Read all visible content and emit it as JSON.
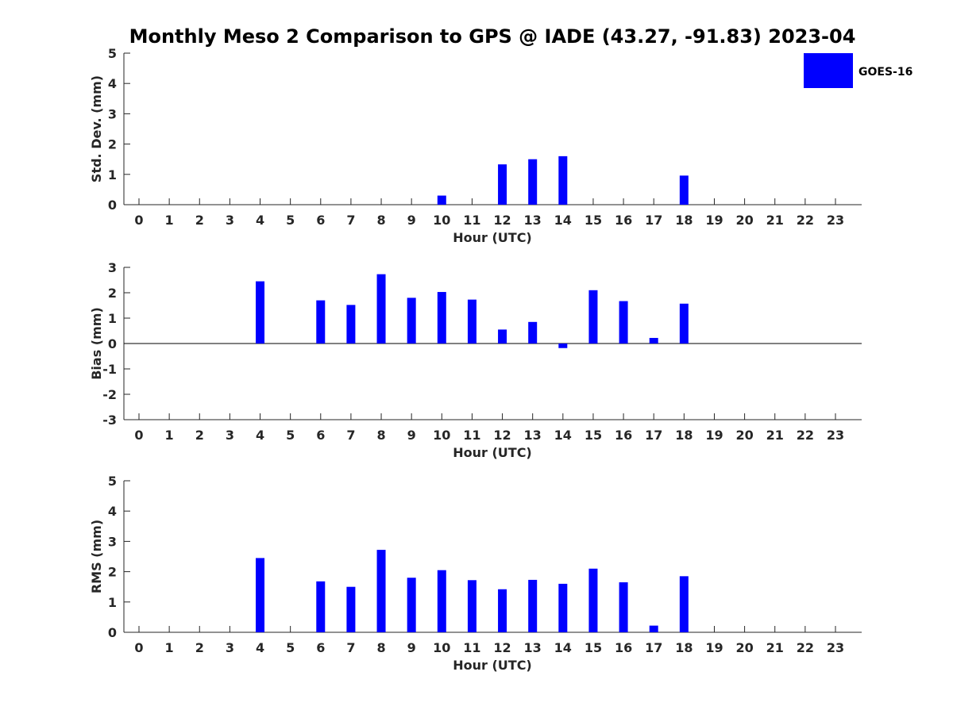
{
  "title": "Monthly Meso 2 Comparison to GPS @ IADE (43.27, -91.83) 2023-04",
  "legend": {
    "label": "GOES-16",
    "color": "#0000ff"
  },
  "colors": {
    "bar": "#0000ff",
    "axis": "#262626"
  },
  "chart_data": [
    {
      "type": "bar",
      "ylabel": "Std. Dev. (mm)",
      "xlabel": "Hour (UTC)",
      "ylim": [
        0,
        5
      ],
      "yticks": [
        "0",
        "1",
        "2",
        "3",
        "4",
        "5"
      ],
      "categories": [
        "0",
        "1",
        "2",
        "3",
        "4",
        "5",
        "6",
        "7",
        "8",
        "9",
        "10",
        "11",
        "12",
        "13",
        "14",
        "15",
        "16",
        "17",
        "18",
        "19",
        "20",
        "21",
        "22",
        "23"
      ],
      "series": [
        {
          "name": "GOES-16",
          "values": [
            null,
            null,
            null,
            null,
            null,
            null,
            null,
            null,
            null,
            null,
            0.3,
            null,
            1.33,
            1.5,
            1.6,
            null,
            null,
            null,
            0.96,
            null,
            null,
            null,
            null,
            null
          ]
        }
      ]
    },
    {
      "type": "bar",
      "ylabel": "Bias (mm)",
      "xlabel": "Hour (UTC)",
      "ylim": [
        -3,
        3
      ],
      "yticks": [
        "-3",
        "-2",
        "-1",
        "0",
        "1",
        "2",
        "3"
      ],
      "categories": [
        "0",
        "1",
        "2",
        "3",
        "4",
        "5",
        "6",
        "7",
        "8",
        "9",
        "10",
        "11",
        "12",
        "13",
        "14",
        "15",
        "16",
        "17",
        "18",
        "19",
        "20",
        "21",
        "22",
        "23"
      ],
      "series": [
        {
          "name": "GOES-16",
          "values": [
            null,
            null,
            null,
            null,
            2.45,
            null,
            1.7,
            1.52,
            2.73,
            1.8,
            2.03,
            1.73,
            0.55,
            0.85,
            -0.18,
            2.1,
            1.67,
            0.22,
            1.57,
            null,
            null,
            null,
            null,
            null
          ]
        }
      ]
    },
    {
      "type": "bar",
      "ylabel": "RMS (mm)",
      "xlabel": "Hour (UTC)",
      "ylim": [
        0,
        5
      ],
      "yticks": [
        "0",
        "1",
        "2",
        "3",
        "4",
        "5"
      ],
      "categories": [
        "0",
        "1",
        "2",
        "3",
        "4",
        "5",
        "6",
        "7",
        "8",
        "9",
        "10",
        "11",
        "12",
        "13",
        "14",
        "15",
        "16",
        "17",
        "18",
        "19",
        "20",
        "21",
        "22",
        "23"
      ],
      "series": [
        {
          "name": "GOES-16",
          "values": [
            null,
            null,
            null,
            null,
            2.45,
            null,
            1.68,
            1.5,
            2.72,
            1.8,
            2.05,
            1.72,
            1.42,
            1.73,
            1.6,
            2.1,
            1.65,
            0.22,
            1.85,
            null,
            null,
            null,
            null,
            null
          ]
        }
      ]
    }
  ]
}
